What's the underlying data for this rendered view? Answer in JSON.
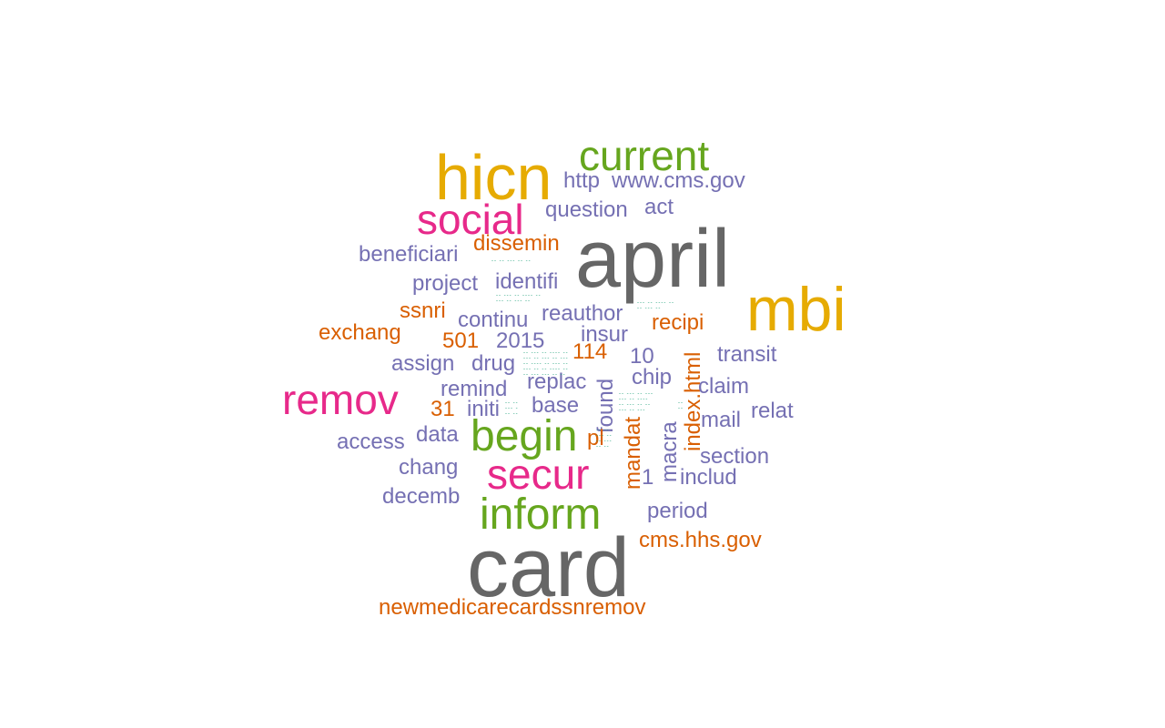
{
  "palette": {
    "gray": "#666666",
    "gold": "#e6ab02",
    "green": "#66a61e",
    "magenta": "#e7298a",
    "orange": "#d95f02",
    "purple": "#7570b3",
    "teal": "#1b9e77"
  },
  "words": [
    {
      "text": "april",
      "color": "gray"
    },
    {
      "text": "card",
      "color": "gray"
    },
    {
      "text": "hicn",
      "color": "gold"
    },
    {
      "text": "mbi",
      "color": "gold"
    },
    {
      "text": "current",
      "color": "green"
    },
    {
      "text": "begin",
      "color": "green"
    },
    {
      "text": "inform",
      "color": "green"
    },
    {
      "text": "social",
      "color": "magenta"
    },
    {
      "text": "remov",
      "color": "magenta"
    },
    {
      "text": "secur",
      "color": "magenta"
    },
    {
      "text": "http",
      "color": "purple"
    },
    {
      "text": "www.cms.gov",
      "color": "purple"
    },
    {
      "text": "question",
      "color": "purple"
    },
    {
      "text": "act",
      "color": "purple"
    },
    {
      "text": "beneficiari",
      "color": "purple"
    },
    {
      "text": "dissemin",
      "color": "orange"
    },
    {
      "text": "project",
      "color": "purple"
    },
    {
      "text": "identifi",
      "color": "purple"
    },
    {
      "text": "ssnri",
      "color": "orange"
    },
    {
      "text": "continu",
      "color": "purple"
    },
    {
      "text": "reauthor",
      "color": "purple"
    },
    {
      "text": "recipi",
      "color": "orange"
    },
    {
      "text": "exchang",
      "color": "orange"
    },
    {
      "text": "501",
      "color": "orange"
    },
    {
      "text": "2015",
      "color": "purple"
    },
    {
      "text": "insur",
      "color": "purple"
    },
    {
      "text": "114",
      "color": "orange"
    },
    {
      "text": "10",
      "color": "purple"
    },
    {
      "text": "transit",
      "color": "purple"
    },
    {
      "text": "assign",
      "color": "purple"
    },
    {
      "text": "drug",
      "color": "purple"
    },
    {
      "text": "replac",
      "color": "purple"
    },
    {
      "text": "chip",
      "color": "purple"
    },
    {
      "text": "found",
      "color": "purple"
    },
    {
      "text": "index.html",
      "color": "orange"
    },
    {
      "text": "claim",
      "color": "purple"
    },
    {
      "text": "remind",
      "color": "purple"
    },
    {
      "text": "31",
      "color": "orange"
    },
    {
      "text": "initi",
      "color": "purple"
    },
    {
      "text": "base",
      "color": "purple"
    },
    {
      "text": "relat",
      "color": "purple"
    },
    {
      "text": "mail",
      "color": "purple"
    },
    {
      "text": "access",
      "color": "purple"
    },
    {
      "text": "data",
      "color": "purple"
    },
    {
      "text": "pl",
      "color": "orange"
    },
    {
      "text": "mandat",
      "color": "orange"
    },
    {
      "text": "macra",
      "color": "purple"
    },
    {
      "text": "section",
      "color": "purple"
    },
    {
      "text": "chang",
      "color": "purple"
    },
    {
      "text": "1",
      "color": "purple"
    },
    {
      "text": "includ",
      "color": "purple"
    },
    {
      "text": "decemb",
      "color": "purple"
    },
    {
      "text": "period",
      "color": "purple"
    },
    {
      "text": "cms.hhs.gov",
      "color": "orange"
    },
    {
      "text": "newmedicarecardssnremov",
      "color": "orange"
    }
  ]
}
